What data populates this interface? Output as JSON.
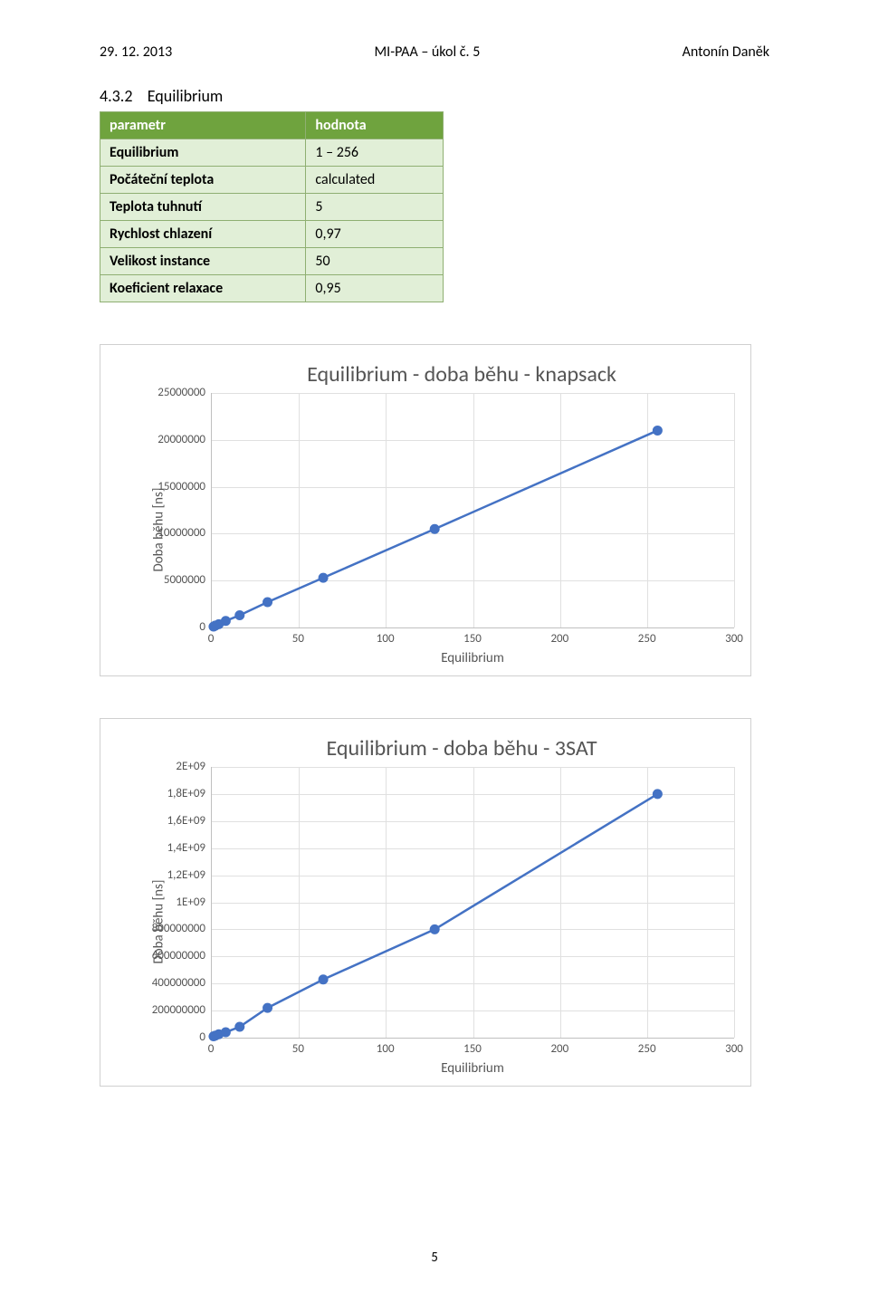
{
  "header": {
    "date": "29. 12. 2013",
    "course": "MI-PAA – úkol č. 5",
    "author": "Antonín Daněk"
  },
  "section": {
    "number": "4.3.2",
    "title": "Equilibrium"
  },
  "params_table": {
    "header": [
      "parametr",
      "hodnota"
    ],
    "rows": [
      [
        "Equilibrium",
        "1 – 256"
      ],
      [
        "Počáteční teplota",
        "calculated"
      ],
      [
        "Teplota tuhnutí",
        "5"
      ],
      [
        "Rychlost chlazení",
        "0,97"
      ],
      [
        "Velikost instance",
        "50"
      ],
      [
        "Koeficient relaxace",
        "0,95"
      ]
    ]
  },
  "chart1": {
    "type": "line",
    "title": "Equilibrium - doba běhu - knapsack",
    "ylabel": "Doba běhu [ns]",
    "xlabel": "Equilibrium",
    "xlim": [
      0,
      300
    ],
    "ylim": [
      0,
      25000000
    ],
    "xtick_step": 50,
    "ytick_step": 5000000,
    "yticks": [
      "25000000",
      "20000000",
      "15000000",
      "10000000",
      "5000000",
      "0"
    ],
    "xticks": [
      "0",
      "50",
      "100",
      "150",
      "200",
      "250",
      "300"
    ],
    "background_color": "#ffffff",
    "grid_color": "#e0e0e0",
    "line_color": "#4472c4",
    "marker_color": "#4472c4",
    "line_width": 2.5,
    "marker_size": 5,
    "data": [
      [
        1,
        100000
      ],
      [
        2,
        200000
      ],
      [
        4,
        350000
      ],
      [
        8,
        700000
      ],
      [
        16,
        1300000
      ],
      [
        32,
        2700000
      ],
      [
        64,
        5300000
      ],
      [
        128,
        10500000
      ],
      [
        256,
        21000000
      ]
    ]
  },
  "chart2": {
    "type": "line",
    "title": "Equilibrium - doba běhu - 3SAT",
    "ylabel": "Doba běhu [ns]",
    "xlabel": "Equilibrium",
    "xlim": [
      0,
      300
    ],
    "ylim": [
      0,
      2000000000
    ],
    "xtick_step": 50,
    "ytick_step": 200000000,
    "yticks": [
      "2E+09",
      "1,8E+09",
      "1,6E+09",
      "1,4E+09",
      "1,2E+09",
      "1E+09",
      "800000000",
      "600000000",
      "400000000",
      "200000000",
      "0"
    ],
    "xticks": [
      "0",
      "50",
      "100",
      "150",
      "200",
      "250",
      "300"
    ],
    "background_color": "#ffffff",
    "grid_color": "#e0e0e0",
    "line_color": "#4472c4",
    "marker_color": "#4472c4",
    "line_width": 2.5,
    "marker_size": 5,
    "data": [
      [
        1,
        10000000
      ],
      [
        2,
        15000000
      ],
      [
        4,
        25000000
      ],
      [
        8,
        40000000
      ],
      [
        16,
        80000000
      ],
      [
        32,
        220000000
      ],
      [
        64,
        430000000
      ],
      [
        128,
        800000000
      ],
      [
        256,
        1800000000
      ]
    ]
  },
  "page_number": "5"
}
